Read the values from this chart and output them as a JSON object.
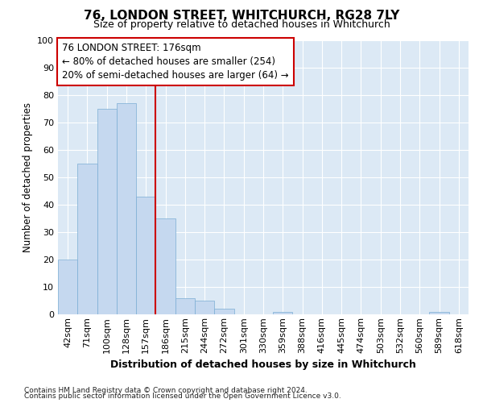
{
  "title1": "76, LONDON STREET, WHITCHURCH, RG28 7LY",
  "title2": "Size of property relative to detached houses in Whitchurch",
  "xlabel": "Distribution of detached houses by size in Whitchurch",
  "ylabel": "Number of detached properties",
  "categories": [
    "42sqm",
    "71sqm",
    "100sqm",
    "128sqm",
    "157sqm",
    "186sqm",
    "215sqm",
    "244sqm",
    "272sqm",
    "301sqm",
    "330sqm",
    "359sqm",
    "388sqm",
    "416sqm",
    "445sqm",
    "474sqm",
    "503sqm",
    "532sqm",
    "560sqm",
    "589sqm",
    "618sqm"
  ],
  "values": [
    20,
    55,
    75,
    77,
    43,
    35,
    6,
    5,
    2,
    0,
    0,
    1,
    0,
    0,
    0,
    0,
    0,
    0,
    0,
    1,
    0
  ],
  "bar_color": "#c5d8ef",
  "bar_edge_color": "#7badd4",
  "background_color": "#dce9f5",
  "grid_color": "#ffffff",
  "property_line_x": 5,
  "annotation_title": "76 LONDON STREET: 176sqm",
  "annotation_line1": "← 80% of detached houses are smaller (254)",
  "annotation_line2": "20% of semi-detached houses are larger (64) →",
  "annotation_box_color": "#ffffff",
  "annotation_box_edge_color": "#cc0000",
  "red_line_color": "#cc0000",
  "ylim": [
    0,
    100
  ],
  "yticks": [
    0,
    10,
    20,
    30,
    40,
    50,
    60,
    70,
    80,
    90,
    100
  ],
  "footnote1": "Contains HM Land Registry data © Crown copyright and database right 2024.",
  "footnote2": "Contains public sector information licensed under the Open Government Licence v3.0.",
  "fig_bg": "#ffffff"
}
